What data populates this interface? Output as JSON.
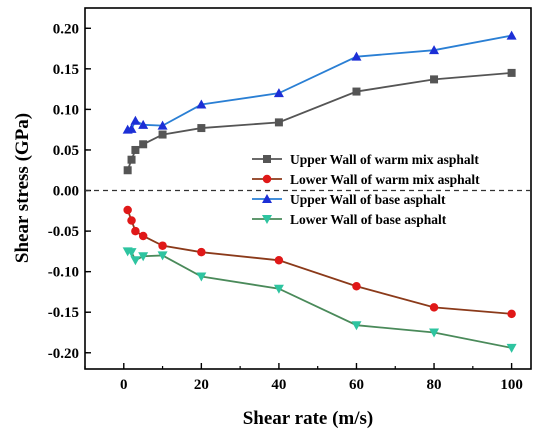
{
  "chart_data": {
    "type": "line",
    "xlabel": "Shear rate (m/s)",
    "ylabel": "Shear stress (GPa)",
    "xlim": [
      -10,
      105
    ],
    "ylim": [
      -0.22,
      0.225
    ],
    "x_ticks": [
      0,
      20,
      40,
      60,
      80,
      100
    ],
    "y_ticks": [
      -0.2,
      -0.15,
      -0.1,
      -0.05,
      0.0,
      0.05,
      0.1,
      0.15,
      0.2
    ],
    "x_tick_labels": [
      "0",
      "20",
      "40",
      "60",
      "80",
      "100"
    ],
    "y_tick_labels": [
      "-0.20",
      "-0.15",
      "-0.10",
      "-0.05",
      "0.00",
      "0.05",
      "0.10",
      "0.15",
      "0.20"
    ],
    "zero_line": true,
    "grid": false,
    "legend_position": "center-right",
    "series": [
      {
        "name": "Upper Wall of warm mix asphalt",
        "color": "#555555",
        "marker": "square",
        "x": [
          1,
          2,
          3,
          5,
          10,
          20,
          40,
          60,
          80,
          100
        ],
        "y": [
          0.025,
          0.038,
          0.05,
          0.057,
          0.069,
          0.077,
          0.084,
          0.122,
          0.137,
          0.145
        ]
      },
      {
        "name": "Lower Wall of warm mix asphalt",
        "color": "#e01818",
        "line_color": "#8b3a1a",
        "marker": "circle",
        "x": [
          1,
          2,
          3,
          5,
          10,
          20,
          40,
          60,
          80,
          100
        ],
        "y": [
          -0.024,
          -0.037,
          -0.05,
          -0.056,
          -0.068,
          -0.076,
          -0.086,
          -0.118,
          -0.144,
          -0.152
        ]
      },
      {
        "name": "Upper Wall of base asphalt",
        "color": "#1c2fd6",
        "line_color": "#2a7fd4",
        "marker": "triangle-up",
        "x": [
          1,
          2,
          3,
          5,
          10,
          20,
          40,
          60,
          80,
          100
        ],
        "y": [
          0.075,
          0.076,
          0.086,
          0.081,
          0.08,
          0.106,
          0.12,
          0.165,
          0.173,
          0.191
        ]
      },
      {
        "name": "Lower Wall of base asphalt",
        "color": "#2ec4a0",
        "line_color": "#4a8a5a",
        "marker": "triangle-down",
        "x": [
          1,
          2,
          3,
          5,
          10,
          20,
          40,
          60,
          80,
          100
        ],
        "y": [
          -0.075,
          -0.076,
          -0.086,
          -0.081,
          -0.08,
          -0.106,
          -0.121,
          -0.166,
          -0.175,
          -0.194
        ]
      }
    ]
  }
}
